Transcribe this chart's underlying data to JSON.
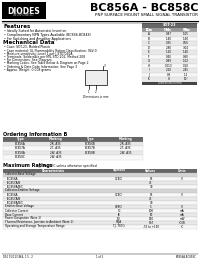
{
  "title": "BC856A - BC858C",
  "subtitle": "PNP SURFACE MOUNT SMALL SIGNAL TRANSISTOR",
  "bg_color": "#ffffff",
  "logo_text": "DIODES",
  "logo_sub": "INCORPORATED",
  "features_title": "Features",
  "features": [
    "Ideally Suited for Automatic Insertion",
    "Complimentary NPN Types Available (BC846-BC848)",
    "For Switching and Amplifier Applications"
  ],
  "mech_title": "Mechanical Data",
  "mech_items": [
    "Case: SOT-23, Molded Plastic",
    "Case material: UL Flammability Rating Classification: 94V-0",
    "Moisture sensitivity: Level 1 per J-STD-020A",
    "Terminals: Solderable per MIL-STD-202, Method 208",
    "For Dimensions: See Diagram",
    "Marking Codes: See Table Below & Diagram on Page 2",
    "Ordering & Date Code Information: See Page 3",
    "Approx. Weight: 0.008 grams"
  ],
  "sot23_table": [
    [
      "Dim",
      "Min",
      "Max"
    ],
    [
      "A",
      "0.87",
      "1.05"
    ],
    [
      "B",
      "1.40",
      "1.60"
    ],
    [
      "C",
      "0.35",
      "0.50"
    ],
    [
      "D",
      "2.80",
      "3.04"
    ],
    [
      "E",
      "1.20",
      "1.40"
    ],
    [
      "F",
      "0.40",
      "0.60"
    ],
    [
      "G",
      "0.89",
      "1.02"
    ],
    [
      "H",
      "0.013",
      "0.10"
    ],
    [
      "I",
      "2.10",
      "2.45"
    ],
    [
      "J",
      "0.9",
      "1.1"
    ],
    [
      "K",
      "0°",
      "10°"
    ]
  ],
  "order_title": "Ordering Information B",
  "order_cols": [
    "Type",
    "Marking",
    "Type",
    "Marking"
  ],
  "order_rows": [
    [
      "BC856A",
      "2R, A35",
      "BC856B",
      "2R, A35"
    ],
    [
      "BC857A",
      "2T, A35",
      "BC857B",
      "2T, A35"
    ],
    [
      "BC858A",
      "2W, A35",
      "BC858B",
      "2W, A35"
    ],
    [
      "BC858C",
      "2W, A35",
      "",
      ""
    ]
  ],
  "max_title": "Maximum Ratings",
  "max_note": "@ TA=25°C unless otherwise specified",
  "max_cols": [
    "Characteristic",
    "Symbol",
    "Values",
    "Units"
  ],
  "max_rows": [
    [
      "Collector-Base Voltage",
      "",
      "",
      ""
    ],
    [
      "  BC856A",
      "VCBO",
      "65",
      "V"
    ],
    [
      "  BC857A/B",
      "",
      "45",
      ""
    ],
    [
      "  BC858A/B/C",
      "",
      "30",
      ""
    ],
    [
      "Collector-Emitter Voltage",
      "",
      "",
      ""
    ],
    [
      "  BC856A",
      "VCEO",
      "65",
      "V"
    ],
    [
      "  BC857A/B",
      "",
      "45",
      ""
    ],
    [
      "  BC858A/B/C",
      "",
      "30",
      ""
    ],
    [
      "Emitter-Base Voltage",
      "VEBO",
      "5",
      "V"
    ],
    [
      "Collector Current",
      "IC",
      "100",
      "mA"
    ],
    [
      "Base Current",
      "IB",
      "50",
      "mA"
    ],
    [
      "Power Dissipation (Note 1)",
      "PD",
      "150",
      "mW"
    ],
    [
      "Thermal Resistance, Junction to Ambient (Note 1)",
      "RθJA",
      "667",
      "°C/W"
    ],
    [
      "Operating and Storage Temperature Range",
      "TJ, TSTG",
      "-55 to +150",
      "°C"
    ]
  ],
  "footer_left": "DS1 15/11/1964, 1.5 - 2",
  "footer_center": "1 of 3",
  "footer_right": "BC856A-BC858C"
}
